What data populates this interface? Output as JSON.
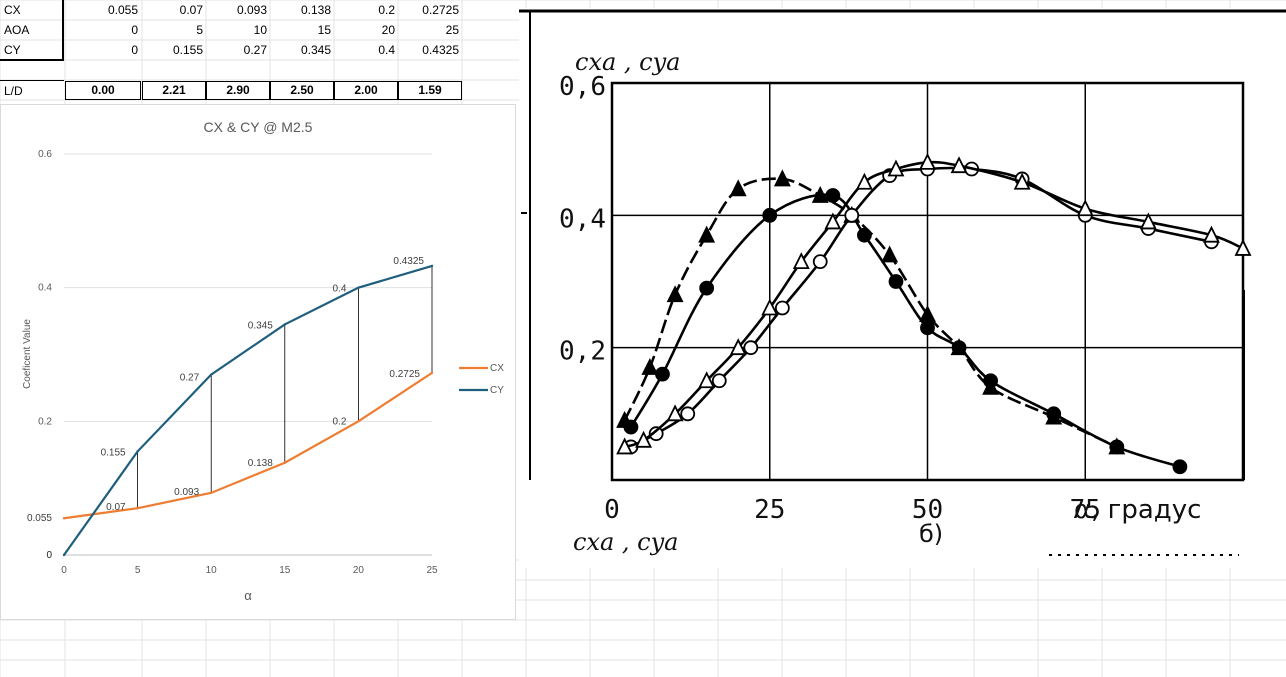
{
  "table": {
    "rows": [
      {
        "label": "CX",
        "values": [
          "0.055",
          "0.07",
          "0.093",
          "0.138",
          "0.2",
          "0.2725"
        ]
      },
      {
        "label": "AOA",
        "values": [
          "0",
          "5",
          "10",
          "15",
          "20",
          "25"
        ]
      },
      {
        "label": "CY",
        "values": [
          "0",
          "0.155",
          "0.27",
          "0.345",
          "0.4",
          "0.4325"
        ]
      }
    ],
    "ld_label": "L/D",
    "ld_values": [
      "0.00",
      "2.21",
      "2.90",
      "2.50",
      "2.00",
      "1.59"
    ]
  },
  "chart_data": [
    {
      "type": "line",
      "title": "CX & CY @ M2.5",
      "xlabel": "α",
      "ylabel": "Coeficent Value",
      "x": [
        0,
        5,
        10,
        15,
        20,
        25
      ],
      "xlim": [
        0,
        25
      ],
      "ylim": [
        0,
        0.6
      ],
      "xticks": [
        "0",
        "5",
        "10",
        "15",
        "20",
        "25"
      ],
      "yticks": [
        "0",
        "0.2",
        "0.4",
        "0.6"
      ],
      "series": [
        {
          "name": "CX",
          "color": "#ED7D31",
          "values": [
            0.055,
            0.07,
            0.093,
            0.138,
            0.2,
            0.2725
          ],
          "labels": [
            "0.055",
            "0.07",
            "0.093",
            "0.138",
            "0.2",
            "0.2725"
          ]
        },
        {
          "name": "CY",
          "color": "#1F5F7E",
          "values": [
            0,
            0.155,
            0.27,
            0.345,
            0.4,
            0.4325
          ],
          "labels": [
            "0",
            "0.155",
            "0.27",
            "0.345",
            "0.4",
            "0.4325"
          ]
        }
      ],
      "legend": "right",
      "grid": true,
      "drop_lines": true
    },
    {
      "type": "line",
      "title": "",
      "ylabel": "cxa , cya",
      "xlabel": "α, градус",
      "bottom_label": "cxa , cya",
      "panel_label": "б)",
      "xlim": [
        0,
        100
      ],
      "ylim": [
        0,
        0.6
      ],
      "xticks": [
        "0",
        "25",
        "50",
        "75"
      ],
      "yticks": [
        "0,2",
        "0,4",
        "0,6"
      ],
      "grid": true,
      "series": [
        {
          "marker": "filled-triangle",
          "dashed": true,
          "x": [
            2,
            6,
            10,
            15,
            20,
            27,
            33,
            38,
            44,
            50,
            55,
            60,
            70,
            80
          ],
          "y": [
            0.09,
            0.17,
            0.28,
            0.37,
            0.44,
            0.455,
            0.43,
            0.4,
            0.34,
            0.25,
            0.2,
            0.14,
            0.095,
            0.05
          ]
        },
        {
          "marker": "filled-circle",
          "dashed": false,
          "x": [
            3,
            8,
            15,
            25,
            35,
            40,
            45,
            50,
            55,
            60,
            70,
            80,
            90
          ],
          "y": [
            0.08,
            0.16,
            0.29,
            0.4,
            0.43,
            0.37,
            0.3,
            0.23,
            0.2,
            0.15,
            0.1,
            0.05,
            0.02
          ]
        },
        {
          "marker": "open-circle",
          "dashed": false,
          "x": [
            3,
            7,
            12,
            17,
            22,
            27,
            33,
            38,
            44,
            50,
            57,
            65,
            75,
            85,
            95
          ],
          "y": [
            0.05,
            0.07,
            0.1,
            0.15,
            0.2,
            0.26,
            0.33,
            0.4,
            0.46,
            0.47,
            0.47,
            0.455,
            0.4,
            0.38,
            0.36
          ]
        },
        {
          "marker": "open-triangle",
          "dashed": false,
          "x": [
            2,
            5,
            10,
            15,
            20,
            25,
            30,
            35,
            40,
            45,
            50,
            55,
            65,
            75,
            85,
            95,
            100
          ],
          "y": [
            0.05,
            0.06,
            0.1,
            0.15,
            0.2,
            0.26,
            0.33,
            0.39,
            0.45,
            0.47,
            0.48,
            0.475,
            0.45,
            0.41,
            0.39,
            0.37,
            0.35
          ]
        }
      ]
    }
  ]
}
